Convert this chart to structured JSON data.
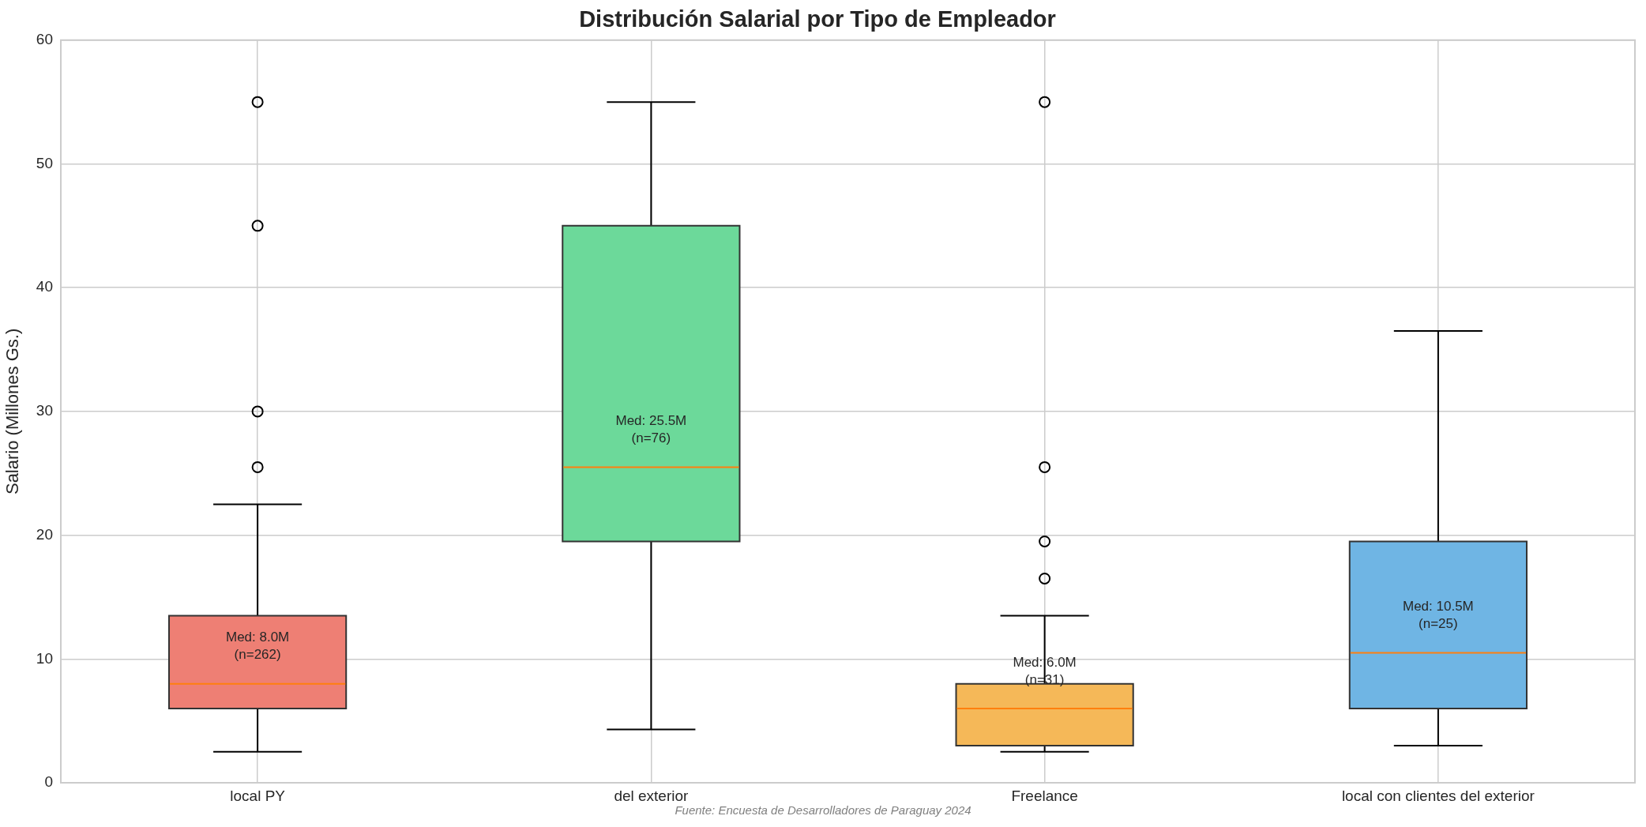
{
  "chart_data": {
    "type": "box",
    "title": "Distribución Salarial por Tipo de Empleador",
    "ylabel": "Salario (Millones Gs.)",
    "categories": [
      "local PY",
      "del exterior",
      "Freelance",
      "local con clientes del exterior"
    ],
    "boxes": [
      {
        "low": 2.5,
        "q1": 6,
        "median": 8,
        "q3": 13.5,
        "high": 22.5,
        "outliers": [
          55,
          45,
          30,
          25.5
        ]
      },
      {
        "low": 4.3,
        "q1": 19.5,
        "median": 25.5,
        "q3": 45,
        "high": 55
      },
      {
        "low": 2.5,
        "q1": 3,
        "median": 6,
        "q3": 8,
        "high": 13.5,
        "outliers": [
          55,
          25.5,
          19.5,
          16.5
        ]
      },
      {
        "low": 3,
        "q1": 6,
        "median": 10.5,
        "q3": 19.5,
        "high": 36.5
      }
    ],
    "colors": [
      "#ee7f74",
      "#6cd99a",
      "#f5b858",
      "#6fb5e4"
    ],
    "ylim": [
      0,
      60
    ],
    "yticks": [
      0,
      10,
      20,
      30,
      40,
      50,
      60
    ],
    "grid": true,
    "annotations": [
      {
        "text": "Med: 8.0M\n(n=262)",
        "x": "local PY",
        "y": 8
      },
      {
        "text": "Med: 25.5M\n(n=76)",
        "x": "del exterior",
        "y": 25.5
      },
      {
        "text": "Med: 6.0M\n(n=31)",
        "x": "Freelance",
        "y": 6
      },
      {
        "text": "Med: 10.5M\n(n=25)",
        "x": "local con clientes del exterior",
        "y": 10.5
      },
      "Fuente: Encuesta de Desarrolladores de Paraguay 2024"
    ]
  }
}
